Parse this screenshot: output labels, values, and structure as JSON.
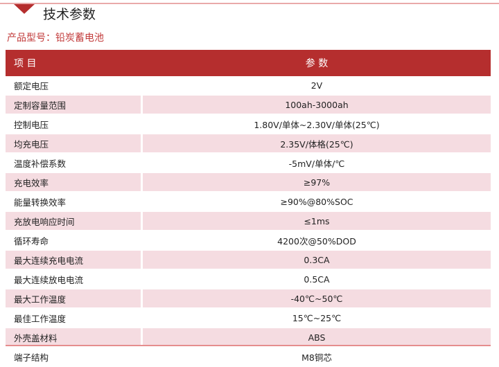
{
  "section_title": "技术参数",
  "product_model": "产品型号：铅炭蓄电池",
  "table": {
    "headers": [
      "项 目",
      "参 数"
    ],
    "rows": [
      [
        "额定电压",
        "2V"
      ],
      [
        "定制容量范围",
        "100ah-3000ah"
      ],
      [
        "控制电压",
        "1.80V/单体~2.30V/单体(25℃)"
      ],
      [
        "均充电压",
        "2.35V/体格(25℃)"
      ],
      [
        "温度补偿系数",
        "-5mV/单体/℃"
      ],
      [
        "充电效率",
        "≥97%"
      ],
      [
        "能量转换效率",
        "≥90%@80%SOC"
      ],
      [
        "充放电响应时间",
        "≤1ms"
      ],
      [
        "循环寿命",
        "4200次@50%DOD"
      ],
      [
        "最大连续充电电流",
        "0.3CA"
      ],
      [
        "最大连续放电电流",
        "0.5CA"
      ],
      [
        "最大工作温度",
        "-40℃~50℃"
      ],
      [
        "最佳工作温度",
        "15℃~25℃"
      ],
      [
        "外壳盖材料",
        "ABS"
      ],
      [
        "端子结构",
        "M8铜芯"
      ]
    ]
  },
  "colors": {
    "accent": "#b52e2e",
    "row_alt": "#f5dce1"
  }
}
